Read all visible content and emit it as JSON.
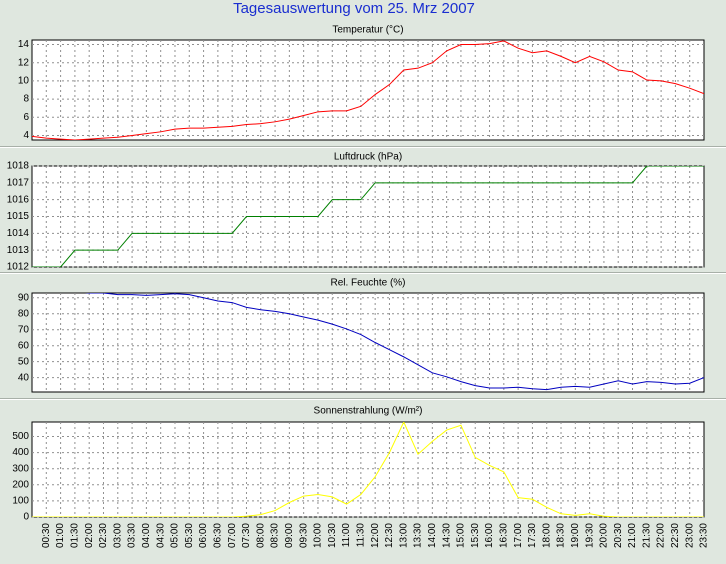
{
  "title": "Tagesauswertung vom 25. Mrz 2007",
  "chart_data": [
    {
      "type": "line",
      "title": "Temperatur (°C)",
      "color": "#ff0000",
      "grid": true,
      "ylim": [
        3.5,
        14.5
      ],
      "yticks": [
        4,
        6,
        8,
        10,
        12,
        14
      ],
      "values": [
        3.9,
        3.7,
        3.6,
        3.5,
        3.6,
        3.7,
        3.8,
        4.0,
        4.2,
        4.4,
        4.7,
        4.8,
        4.8,
        4.9,
        5.0,
        5.2,
        5.3,
        5.5,
        5.8,
        6.2,
        6.6,
        6.7,
        6.7,
        7.2,
        8.5,
        9.6,
        11.2,
        11.4,
        12.0,
        13.3,
        14.0,
        14.0,
        14.1,
        14.4,
        13.6,
        13.1,
        13.3,
        12.7,
        12.0,
        12.7,
        12.1,
        11.2,
        11.0,
        10.1,
        10.0,
        9.7,
        9.2,
        8.6
      ]
    },
    {
      "type": "line",
      "title": "Luftdruck (hPa)",
      "color": "#008000",
      "grid": true,
      "ylim": [
        1012,
        1018
      ],
      "yticks": [
        1012,
        1013,
        1014,
        1015,
        1016,
        1017,
        1018
      ],
      "values": [
        1012,
        1012,
        1012,
        1013,
        1013,
        1013,
        1013,
        1014,
        1014,
        1014,
        1014,
        1014,
        1014,
        1014,
        1014,
        1015,
        1015,
        1015,
        1015,
        1015,
        1015,
        1016,
        1016,
        1016,
        1017,
        1017,
        1017,
        1017,
        1017,
        1017,
        1017,
        1017,
        1017,
        1017,
        1017,
        1017,
        1017,
        1017,
        1017,
        1017,
        1017,
        1017,
        1017,
        1018,
        1018,
        1018,
        1018,
        1018
      ]
    },
    {
      "type": "line",
      "title": "Rel. Feuchte (%)",
      "color": "#0000c0",
      "grid": true,
      "ylim": [
        31,
        93
      ],
      "yticks": [
        40,
        50,
        60,
        70,
        80,
        90
      ],
      "values": [
        95,
        95,
        94,
        94,
        93,
        93,
        92,
        92,
        91.5,
        92,
        92.5,
        92,
        90,
        88,
        87,
        84,
        82.5,
        81.5,
        80,
        78,
        76,
        73.5,
        70.5,
        67,
        62,
        57.5,
        53,
        48,
        43,
        40.5,
        37.5,
        35,
        33.5,
        33.5,
        34,
        33,
        32.5,
        34,
        34.5,
        34,
        36,
        38,
        36,
        37.5,
        37,
        36,
        36.5,
        40
      ]
    },
    {
      "type": "line",
      "title": "Sonnenstrahlung (W/m²)",
      "color": "#ffff00",
      "grid": true,
      "ylim": [
        0,
        590
      ],
      "yticks": [
        0,
        100,
        200,
        300,
        400,
        500
      ],
      "categories": [
        null,
        "00:30",
        "01:00",
        "01:30",
        "02:00",
        "02:30",
        "03:00",
        "03:30",
        "04:00",
        "04:30",
        "05:00",
        "05:30",
        "06:00",
        "06:30",
        "07:00",
        "07:30",
        "08:00",
        "08:30",
        "09:00",
        "09:30",
        "10:00",
        "10:30",
        "11:00",
        "11:30",
        "12:00",
        "12:30",
        "13:00",
        "13:30",
        "14:00",
        "14:30",
        "15:00",
        "15:30",
        "16:00",
        "16:30",
        "17:00",
        "17:30",
        "18:00",
        "18:30",
        "19:00",
        "19:30",
        "20:00",
        "20:30",
        "21:00",
        "21:30",
        "22:00",
        "22:30",
        "23:00",
        "23:30"
      ],
      "values": [
        0,
        0,
        0,
        0,
        0,
        0,
        0,
        0,
        0,
        0,
        0,
        0,
        0,
        0,
        0,
        5,
        15,
        40,
        90,
        130,
        140,
        125,
        80,
        140,
        250,
        400,
        590,
        390,
        470,
        540,
        570,
        370,
        320,
        280,
        120,
        110,
        60,
        20,
        10,
        20,
        5,
        0,
        0,
        0,
        0,
        0,
        0,
        0
      ]
    }
  ]
}
